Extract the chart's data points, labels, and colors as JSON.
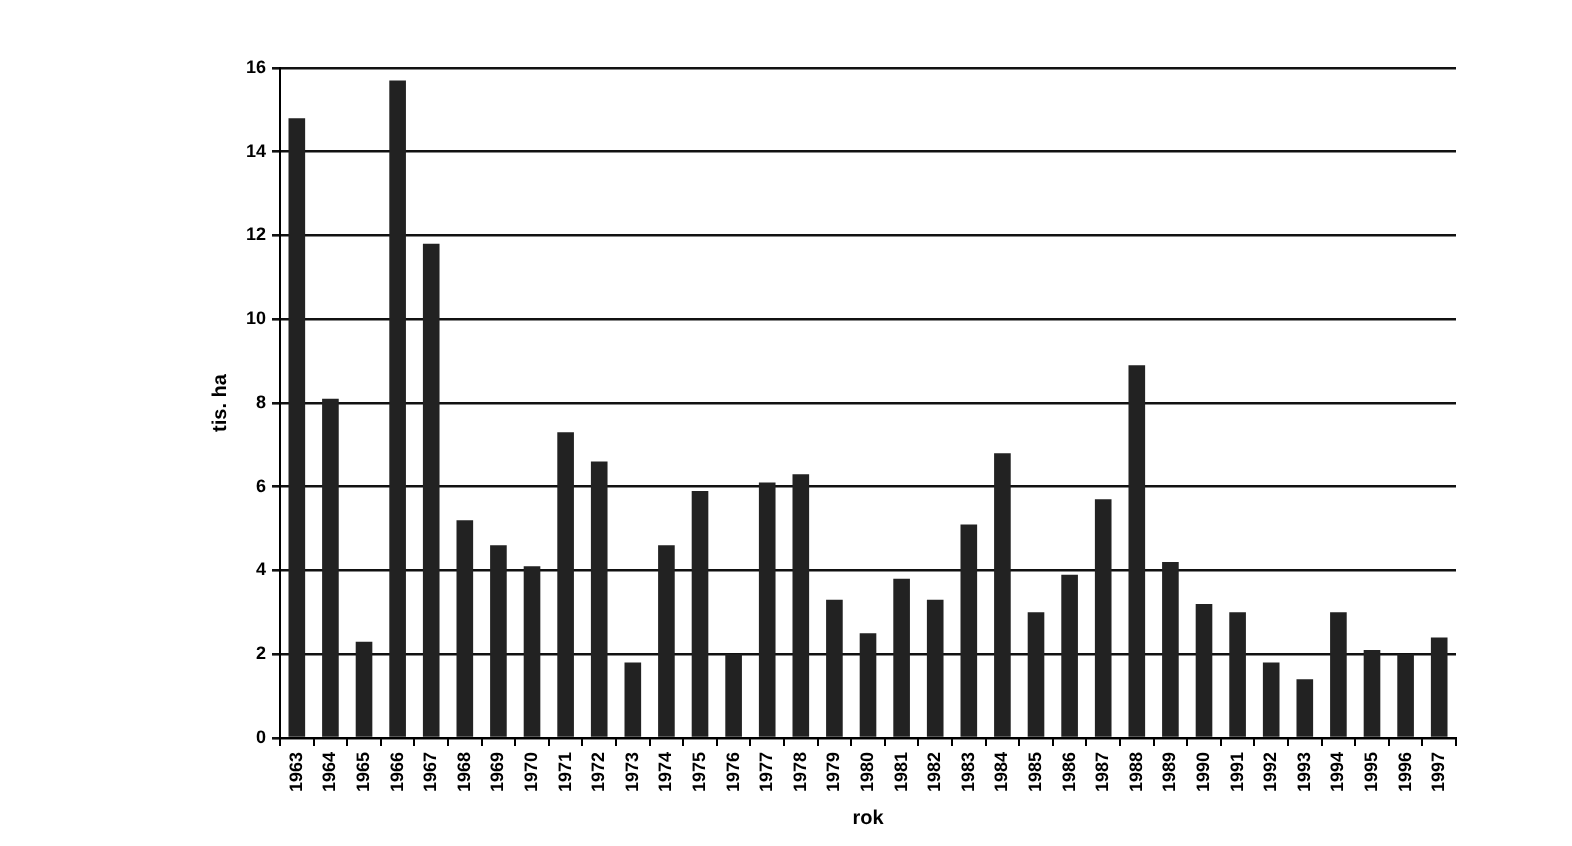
{
  "chart_data": {
    "type": "bar",
    "xlabel": "rok",
    "ylabel": "tis. ha",
    "categories": [
      "1963",
      "1964",
      "1965",
      "1966",
      "1967",
      "1968",
      "1969",
      "1970",
      "1971",
      "1972",
      "1973",
      "1974",
      "1975",
      "1976",
      "1977",
      "1978",
      "1979",
      "1980",
      "1981",
      "1982",
      "1983",
      "1984",
      "1985",
      "1986",
      "1987",
      "1988",
      "1989",
      "1990",
      "1991",
      "1992",
      "1993",
      "1994",
      "1995",
      "1996",
      "1997"
    ],
    "values": [
      14.8,
      8.1,
      2.3,
      15.7,
      11.8,
      5.2,
      4.6,
      4.1,
      7.3,
      6.6,
      1.8,
      4.6,
      5.9,
      2.0,
      6.1,
      6.3,
      3.3,
      2.5,
      3.8,
      3.3,
      5.1,
      6.8,
      3.0,
      3.9,
      5.7,
      8.9,
      4.2,
      3.2,
      3.0,
      1.8,
      1.4,
      3.0,
      2.1,
      2.0,
      2.4
    ],
    "color": "#222222",
    "ylim": [
      0,
      16
    ],
    "yticks": [
      0,
      2,
      4,
      6,
      8,
      10,
      12,
      14,
      16
    ],
    "grid": "y"
  }
}
